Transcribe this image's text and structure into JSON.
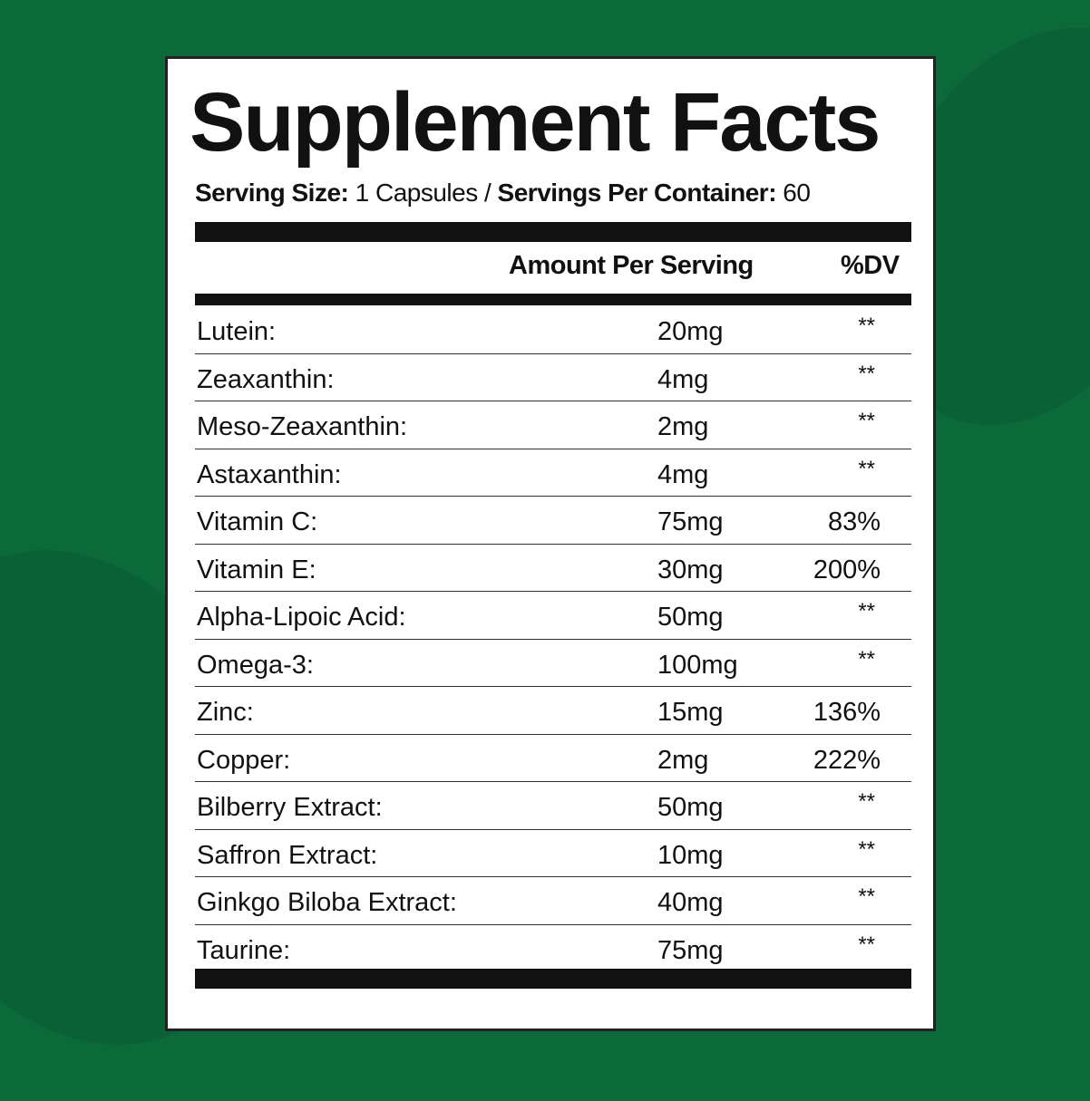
{
  "colors": {
    "background": "#0c6a3a",
    "label": "#ffffff",
    "ink": "#111111"
  },
  "title": "Supplement Facts",
  "serving": {
    "size_label": "Serving Size:",
    "size_value": " 1 Capsules / ",
    "per_container_label": "Servings Per Container:",
    "per_container_value": " 60"
  },
  "columns": {
    "amount": "Amount Per Serving",
    "dv": "%DV"
  },
  "rows": [
    {
      "name": "Lutein:",
      "amount": "20mg",
      "dv": "**"
    },
    {
      "name": "Zeaxanthin:",
      "amount": "4mg",
      "dv": "**"
    },
    {
      "name": "Meso-Zeaxanthin:",
      "amount": "2mg",
      "dv": "**"
    },
    {
      "name": "Astaxanthin:",
      "amount": "4mg",
      "dv": "**"
    },
    {
      "name": "Vitamin C:",
      "amount": "75mg",
      "dv": "83%"
    },
    {
      "name": "Vitamin E:",
      "amount": "30mg",
      "dv": "200%"
    },
    {
      "name": "Alpha-Lipoic Acid:",
      "amount": "50mg",
      "dv": "**"
    },
    {
      "name": "Omega-3:",
      "amount": "100mg",
      "dv": "**"
    },
    {
      "name": "Zinc:",
      "amount": "15mg",
      "dv": "136%"
    },
    {
      "name": "Copper:",
      "amount": "2mg",
      "dv": "222%"
    },
    {
      "name": "Bilberry Extract:",
      "amount": "50mg",
      "dv": "**"
    },
    {
      "name": "Saffron Extract:",
      "amount": "10mg",
      "dv": "**"
    },
    {
      "name": "Ginkgo Biloba Extract:",
      "amount": "40mg",
      "dv": "**"
    },
    {
      "name": "Taurine:",
      "amount": "75mg",
      "dv": "**"
    }
  ]
}
